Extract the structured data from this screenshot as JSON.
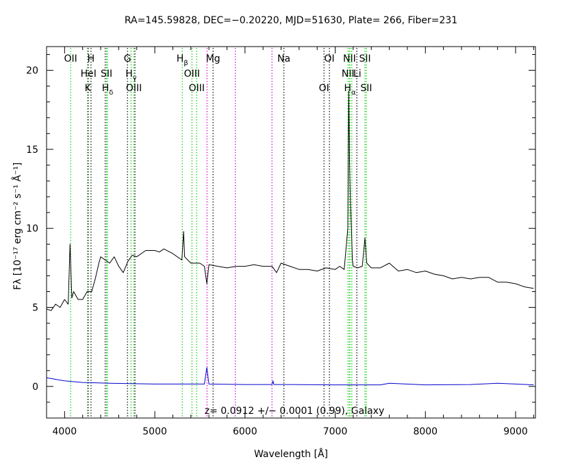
{
  "chart_data": {
    "type": "line",
    "title": "RA=145.59828, DEC=−0.20220, MJD=51630, Plate= 266, Fiber=231",
    "xlabel": "Wavelength [Å]",
    "ylabel": "Fλ [10⁻¹⁷ erg cm⁻² s⁻¹ Å⁻¹]",
    "annotation": "z= 0.0912 +/− 0.0001 (0.99), Galaxy",
    "xlim": [
      3800,
      9220
    ],
    "ylim": [
      -2,
      21.5
    ],
    "x_ticks": [
      4000,
      5000,
      6000,
      7000,
      8000,
      9000
    ],
    "y_ticks": [
      0,
      5,
      10,
      15,
      20
    ],
    "grid": false,
    "colors": {
      "flux": "#000000",
      "error": "#0000cc",
      "emission": "#00cc00",
      "absorption": "#000000",
      "sky": "#cc00cc"
    },
    "series": [
      {
        "name": "flux",
        "x": [
          3800,
          3850,
          3900,
          3950,
          4000,
          4040,
          4060,
          4080,
          4100,
          4150,
          4200,
          4250,
          4300,
          4340,
          4380,
          4400,
          4450,
          4500,
          4550,
          4600,
          4650,
          4700,
          4750,
          4800,
          4900,
          5000,
          5050,
          5100,
          5200,
          5300,
          5320,
          5330,
          5400,
          5500,
          5550,
          5577,
          5600,
          5700,
          5800,
          5900,
          6000,
          6100,
          6200,
          6300,
          6350,
          6400,
          6500,
          6600,
          6700,
          6800,
          6900,
          7000,
          7050,
          7100,
          7140,
          7150,
          7160,
          7170,
          7180,
          7190,
          7200,
          7250,
          7300,
          7330,
          7340,
          7350,
          7400,
          7500,
          7600,
          7700,
          7800,
          7900,
          8000,
          8100,
          8200,
          8300,
          8400,
          8500,
          8600,
          8700,
          8800,
          8900,
          9000,
          9100,
          9200
        ],
        "y": [
          4.9,
          4.8,
          5.2,
          5.0,
          5.5,
          5.2,
          9.0,
          5.6,
          6.0,
          5.5,
          5.5,
          6.0,
          6.0,
          6.8,
          7.8,
          8.2,
          8.0,
          7.8,
          8.2,
          7.6,
          7.2,
          7.9,
          8.3,
          8.2,
          8.6,
          8.6,
          8.5,
          8.7,
          8.4,
          8.0,
          9.8,
          8.2,
          7.8,
          7.8,
          7.6,
          6.5,
          7.7,
          7.6,
          7.5,
          7.6,
          7.6,
          7.7,
          7.6,
          7.6,
          7.2,
          7.8,
          7.6,
          7.4,
          7.4,
          7.3,
          7.5,
          7.4,
          7.6,
          7.4,
          10.0,
          18.7,
          14.0,
          11.5,
          10.0,
          8.0,
          7.6,
          7.5,
          7.6,
          9.4,
          8.6,
          7.8,
          7.5,
          7.5,
          7.8,
          7.3,
          7.4,
          7.2,
          7.3,
          7.1,
          7.0,
          6.8,
          6.9,
          6.8,
          6.9,
          6.9,
          6.6,
          6.6,
          6.5,
          6.3,
          6.2
        ]
      },
      {
        "name": "error",
        "x": [
          3800,
          3900,
          4000,
          4200,
          4500,
          5000,
          5550,
          5577,
          5600,
          6000,
          6300,
          6310,
          6320,
          6500,
          7000,
          7500,
          7600,
          8000,
          8500,
          8800,
          9000,
          9200
        ],
        "y": [
          0.55,
          0.45,
          0.35,
          0.25,
          0.2,
          0.15,
          0.15,
          1.2,
          0.15,
          0.12,
          0.12,
          0.35,
          0.12,
          0.12,
          0.1,
          0.1,
          0.2,
          0.1,
          0.12,
          0.2,
          0.15,
          0.1
        ]
      }
    ],
    "lines": [
      {
        "name": "OII",
        "wl": 4067,
        "type": "emission",
        "row": 0
      },
      {
        "name": "H",
        "wl": 4293,
        "type": "absorption",
        "row": 0
      },
      {
        "name": "G",
        "wl": 4697,
        "type": "absorption",
        "row": 0
      },
      {
        "name": "Hβ",
        "wl": 5305,
        "type": "emission",
        "row": 0
      },
      {
        "name": "Mg",
        "wl": 5646,
        "type": "absorption",
        "row": 0
      },
      {
        "name": "Na",
        "wl": 6431,
        "type": "absorption",
        "row": 0
      },
      {
        "name": "OI",
        "wl": 6936,
        "type": "absorption",
        "row": 0
      },
      {
        "name": "NII",
        "wl": 7158,
        "type": "emission",
        "row": 0
      },
      {
        "name": "SII",
        "wl": 7330,
        "type": "emission",
        "row": 0
      },
      {
        "name": "HeI",
        "wl": 4265,
        "type": "emission",
        "row": 1
      },
      {
        "name": "SII",
        "wl": 4465,
        "type": "emission",
        "row": 1
      },
      {
        "name": "Hγ",
        "wl": 4737,
        "type": "emission",
        "row": 1
      },
      {
        "name": "OIII",
        "wl": 5412,
        "type": "emission",
        "row": 1
      },
      {
        "name": "NII",
        "wl": 7142,
        "type": "emission",
        "row": 1
      },
      {
        "name": "Li",
        "wl": 7245,
        "type": "emission",
        "row": 1
      },
      {
        "name": "K",
        "wl": 4257,
        "type": "absorption",
        "row": 2
      },
      {
        "name": "Hδ",
        "wl": 4476,
        "type": "emission",
        "row": 2
      },
      {
        "name": "OIII",
        "wl": 4768,
        "type": "emission",
        "row": 2
      },
      {
        "name": "OIII",
        "wl": 5465,
        "type": "emission",
        "row": 2
      },
      {
        "name": "OI",
        "wl": 6876,
        "type": "absorption",
        "row": 2
      },
      {
        "name": "Hα",
        "wl": 7163,
        "type": "emission",
        "row": 2
      },
      {
        "name": "SII",
        "wl": 7345,
        "type": "emission",
        "row": 2
      },
      {
        "name": "",
        "wl": 4450,
        "type": "absorption",
        "row": 3
      },
      {
        "name": "",
        "wl": 4780,
        "type": "absorption",
        "row": 3
      },
      {
        "name": "",
        "wl": 5579,
        "type": "sky",
        "row": 3
      },
      {
        "name": "",
        "wl": 5892,
        "type": "sky",
        "row": 3
      },
      {
        "name": "",
        "wl": 6299,
        "type": "sky",
        "row": 3
      },
      {
        "name": "",
        "wl": 7184,
        "type": "emission",
        "row": 3
      },
      {
        "name": "",
        "wl": 7236,
        "type": "sky",
        "row": 3
      }
    ]
  }
}
